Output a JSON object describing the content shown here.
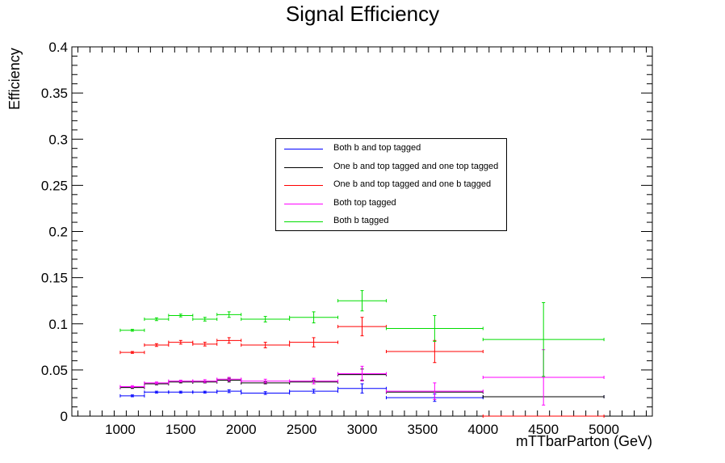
{
  "chart_data": {
    "type": "scatter",
    "title": "Signal Efficiency",
    "xlabel": "mTTbarParton (GeV)",
    "ylabel": "Efficiency",
    "xlim": [
      600,
      5400
    ],
    "ylim": [
      0,
      0.4
    ],
    "x_ticks": [
      "1000",
      "1500",
      "2000",
      "2500",
      "3000",
      "3500",
      "4000",
      "4500",
      "5000"
    ],
    "y_ticks": [
      "0",
      "0.05",
      "0.1",
      "0.15",
      "0.2",
      "0.25",
      "0.3",
      "0.35",
      "0.4"
    ],
    "grid": false,
    "legend_position": "center",
    "series": [
      {
        "name": "Both b and top tagged",
        "color": "#0000ff",
        "points": [
          {
            "x": 1100,
            "xlo": 1000,
            "xhi": 1200,
            "y": 0.022,
            "yerr": 0.001
          },
          {
            "x": 1300,
            "xlo": 1200,
            "xhi": 1400,
            "y": 0.026,
            "yerr": 0.001
          },
          {
            "x": 1500,
            "xlo": 1400,
            "xhi": 1600,
            "y": 0.026,
            "yerr": 0.001
          },
          {
            "x": 1700,
            "xlo": 1600,
            "xhi": 1800,
            "y": 0.026,
            "yerr": 0.001
          },
          {
            "x": 1900,
            "xlo": 1800,
            "xhi": 2000,
            "y": 0.027,
            "yerr": 0.0015
          },
          {
            "x": 2200,
            "xlo": 2000,
            "xhi": 2400,
            "y": 0.025,
            "yerr": 0.0015
          },
          {
            "x": 2600,
            "xlo": 2400,
            "xhi": 2800,
            "y": 0.027,
            "yerr": 0.002
          },
          {
            "x": 3000,
            "xlo": 2800,
            "xhi": 3200,
            "y": 0.03,
            "yerr": 0.005
          },
          {
            "x": 3600,
            "xlo": 3200,
            "xhi": 4000,
            "y": 0.02,
            "yerr": 0.004
          },
          {
            "x": 4500,
            "xlo": 4000,
            "xhi": 5000,
            "y": 0.021,
            "yerr": 0.0
          }
        ]
      },
      {
        "name": "One b and top tagged and one top tagged",
        "color": "#000000",
        "points": [
          {
            "x": 1100,
            "xlo": 1000,
            "xhi": 1200,
            "y": 0.031,
            "yerr": 0.001
          },
          {
            "x": 1300,
            "xlo": 1200,
            "xhi": 1400,
            "y": 0.035,
            "yerr": 0.001
          },
          {
            "x": 1500,
            "xlo": 1400,
            "xhi": 1600,
            "y": 0.037,
            "yerr": 0.001
          },
          {
            "x": 1700,
            "xlo": 1600,
            "xhi": 1800,
            "y": 0.037,
            "yerr": 0.001
          },
          {
            "x": 1900,
            "xlo": 1800,
            "xhi": 2000,
            "y": 0.039,
            "yerr": 0.002
          },
          {
            "x": 2200,
            "xlo": 2000,
            "xhi": 2400,
            "y": 0.036,
            "yerr": 0.001
          },
          {
            "x": 2600,
            "xlo": 2400,
            "xhi": 2800,
            "y": 0.037,
            "yerr": 0.002
          },
          {
            "x": 3000,
            "xlo": 2800,
            "xhi": 3200,
            "y": 0.045,
            "yerr": 0.006
          },
          {
            "x": 3600,
            "xlo": 3200,
            "xhi": 4000,
            "y": 0.026,
            "yerr": 0.0
          },
          {
            "x": 4500,
            "xlo": 4000,
            "xhi": 5000,
            "y": 0.021,
            "yerr": 0.0
          }
        ]
      },
      {
        "name": "One b and top tagged and one b tagged",
        "color": "#ff0000",
        "points": [
          {
            "x": 1100,
            "xlo": 1000,
            "xhi": 1200,
            "y": 0.069,
            "yerr": 0.001
          },
          {
            "x": 1300,
            "xlo": 1200,
            "xhi": 1400,
            "y": 0.077,
            "yerr": 0.0015
          },
          {
            "x": 1500,
            "xlo": 1400,
            "xhi": 1600,
            "y": 0.08,
            "yerr": 0.002
          },
          {
            "x": 1700,
            "xlo": 1600,
            "xhi": 1800,
            "y": 0.078,
            "yerr": 0.002
          },
          {
            "x": 1900,
            "xlo": 1800,
            "xhi": 2000,
            "y": 0.082,
            "yerr": 0.003
          },
          {
            "x": 2200,
            "xlo": 2000,
            "xhi": 2400,
            "y": 0.077,
            "yerr": 0.003
          },
          {
            "x": 2600,
            "xlo": 2400,
            "xhi": 2800,
            "y": 0.08,
            "yerr": 0.005
          },
          {
            "x": 3000,
            "xlo": 2800,
            "xhi": 3200,
            "y": 0.097,
            "yerr": 0.01
          },
          {
            "x": 3600,
            "xlo": 3200,
            "xhi": 4000,
            "y": 0.07,
            "yerr": 0.012
          },
          {
            "x": 4500,
            "xlo": 4000,
            "xhi": 5000,
            "y": 0.0,
            "yerr": 0.0
          }
        ]
      },
      {
        "name": "Both top tagged",
        "color": "#ff00ff",
        "points": [
          {
            "x": 1100,
            "xlo": 1000,
            "xhi": 1200,
            "y": 0.032,
            "yerr": 0.001
          },
          {
            "x": 1300,
            "xlo": 1200,
            "xhi": 1400,
            "y": 0.036,
            "yerr": 0.001
          },
          {
            "x": 1500,
            "xlo": 1400,
            "xhi": 1600,
            "y": 0.038,
            "yerr": 0.001
          },
          {
            "x": 1700,
            "xlo": 1600,
            "xhi": 1800,
            "y": 0.038,
            "yerr": 0.0015
          },
          {
            "x": 1900,
            "xlo": 1800,
            "xhi": 2000,
            "y": 0.04,
            "yerr": 0.002
          },
          {
            "x": 2200,
            "xlo": 2000,
            "xhi": 2400,
            "y": 0.038,
            "yerr": 0.002
          },
          {
            "x": 2600,
            "xlo": 2400,
            "xhi": 2800,
            "y": 0.038,
            "yerr": 0.003
          },
          {
            "x": 3000,
            "xlo": 2800,
            "xhi": 3200,
            "y": 0.046,
            "yerr": 0.008
          },
          {
            "x": 3600,
            "xlo": 3200,
            "xhi": 4000,
            "y": 0.027,
            "yerr": 0.009
          },
          {
            "x": 4500,
            "xlo": 4000,
            "xhi": 5000,
            "y": 0.042,
            "yerr": 0.03
          }
        ]
      },
      {
        "name": "Both b tagged",
        "color": "#00dd00",
        "points": [
          {
            "x": 1100,
            "xlo": 1000,
            "xhi": 1200,
            "y": 0.093,
            "yerr": 0.001
          },
          {
            "x": 1300,
            "xlo": 1200,
            "xhi": 1400,
            "y": 0.105,
            "yerr": 0.0015
          },
          {
            "x": 1500,
            "xlo": 1400,
            "xhi": 1600,
            "y": 0.109,
            "yerr": 0.0015
          },
          {
            "x": 1700,
            "xlo": 1600,
            "xhi": 1800,
            "y": 0.105,
            "yerr": 0.002
          },
          {
            "x": 1900,
            "xlo": 1800,
            "xhi": 2000,
            "y": 0.11,
            "yerr": 0.003
          },
          {
            "x": 2200,
            "xlo": 2000,
            "xhi": 2400,
            "y": 0.105,
            "yerr": 0.003
          },
          {
            "x": 2600,
            "xlo": 2400,
            "xhi": 2800,
            "y": 0.107,
            "yerr": 0.006
          },
          {
            "x": 3000,
            "xlo": 2800,
            "xhi": 3200,
            "y": 0.125,
            "yerr": 0.011
          },
          {
            "x": 3600,
            "xlo": 3200,
            "xhi": 4000,
            "y": 0.095,
            "yerr": 0.014
          },
          {
            "x": 4500,
            "xlo": 4000,
            "xhi": 5000,
            "y": 0.083,
            "yerr": 0.04
          }
        ]
      }
    ]
  }
}
